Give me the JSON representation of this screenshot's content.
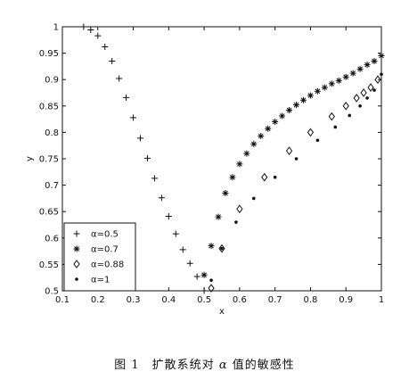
{
  "chart_data": {
    "type": "scatter",
    "xlabel": "x",
    "ylabel": "y",
    "xlim": [
      0.1,
      1.0
    ],
    "ylim": [
      0.5,
      1.0
    ],
    "xticks": [
      "0.1",
      "0.2",
      "0.3",
      "0.4",
      "0.5",
      "0.6",
      "0.7",
      "0.8",
      "0.9",
      "1"
    ],
    "yticks": [
      "0.5",
      "0.55",
      "0.6",
      "0.65",
      "0.7",
      "0.75",
      "0.8",
      "0.85",
      "0.9",
      "0.95",
      "1"
    ],
    "grid": false,
    "legend_position": "bottom-left",
    "series": [
      {
        "name": "α=0.5",
        "marker": "plus",
        "x": [
          0.16,
          0.18,
          0.2,
          0.22,
          0.24,
          0.26,
          0.28,
          0.3,
          0.32,
          0.34,
          0.36,
          0.38,
          0.4,
          0.42,
          0.44,
          0.46,
          0.48,
          0.5
        ],
        "y": [
          1.0,
          0.994,
          0.983,
          0.962,
          0.935,
          0.902,
          0.866,
          0.828,
          0.789,
          0.751,
          0.713,
          0.676,
          0.641,
          0.608,
          0.578,
          0.552,
          0.527,
          0.5
        ]
      },
      {
        "name": "α=0.7",
        "marker": "star",
        "x": [
          0.5,
          0.52,
          0.54,
          0.56,
          0.58,
          0.6,
          0.62,
          0.64,
          0.66,
          0.68,
          0.7,
          0.72,
          0.74,
          0.76,
          0.78,
          0.8,
          0.82,
          0.84,
          0.86,
          0.88,
          0.9,
          0.92,
          0.94,
          0.96,
          0.98,
          1.0
        ],
        "y": [
          0.53,
          0.585,
          0.64,
          0.685,
          0.715,
          0.74,
          0.76,
          0.778,
          0.793,
          0.807,
          0.82,
          0.831,
          0.842,
          0.852,
          0.861,
          0.87,
          0.878,
          0.885,
          0.892,
          0.898,
          0.905,
          0.912,
          0.92,
          0.928,
          0.935,
          0.945
        ]
      },
      {
        "name": "α=0.88",
        "marker": "diamond",
        "x": [
          0.52,
          0.55,
          0.6,
          0.67,
          0.74,
          0.8,
          0.86,
          0.9,
          0.93,
          0.95,
          0.97,
          0.99
        ],
        "y": [
          0.505,
          0.58,
          0.655,
          0.715,
          0.765,
          0.8,
          0.83,
          0.85,
          0.865,
          0.875,
          0.885,
          0.9
        ]
      },
      {
        "name": "α=1",
        "marker": "dot",
        "x": [
          0.52,
          0.55,
          0.59,
          0.64,
          0.7,
          0.76,
          0.82,
          0.87,
          0.91,
          0.94,
          0.96,
          0.98,
          1.0
        ],
        "y": [
          0.52,
          0.58,
          0.63,
          0.675,
          0.715,
          0.75,
          0.785,
          0.81,
          0.832,
          0.85,
          0.865,
          0.88,
          0.91
        ]
      }
    ]
  },
  "caption": {
    "prefix": "图 1　扩散系统对 ",
    "alpha": "α",
    "suffix": " 值的敏感性"
  }
}
